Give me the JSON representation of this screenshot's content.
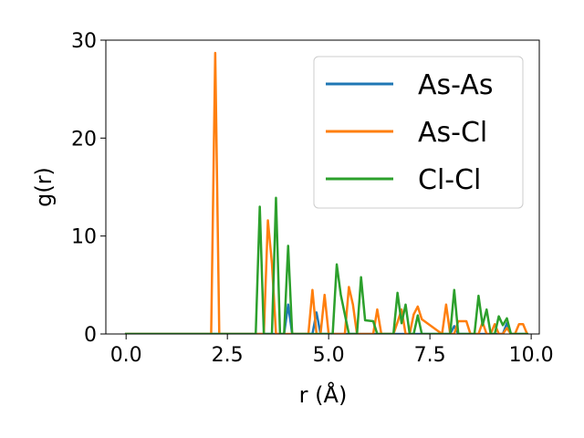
{
  "chart_data": {
    "type": "line",
    "xlabel": "r (Å)",
    "ylabel": "g(r)",
    "xlim": [
      -0.5,
      10.2
    ],
    "ylim": [
      0,
      30
    ],
    "xticks": [
      "0.0",
      "2.5",
      "5.0",
      "7.5",
      "10.0"
    ],
    "yticks": [
      "0",
      "10",
      "20",
      "30"
    ],
    "grid": false,
    "legend_position": "top-right",
    "series": [
      {
        "name": "As-As",
        "color": "#1f77b4",
        "x": [
          0.0,
          3.9,
          4.0,
          4.1,
          4.6,
          4.7,
          4.8,
          8.0,
          8.1,
          8.2,
          9.3,
          9.4,
          9.5,
          9.9
        ],
        "y": [
          0.0,
          0.0,
          3.0,
          0.0,
          0.0,
          2.2,
          0.0,
          0.0,
          0.8,
          0.0,
          0.0,
          1.1,
          0.0,
          0.0
        ]
      },
      {
        "name": "As-Cl",
        "color": "#ff7f0e",
        "x": [
          0.0,
          2.1,
          2.2,
          2.3,
          3.4,
          3.5,
          3.6,
          3.7,
          3.8,
          4.5,
          4.6,
          4.7,
          4.8,
          4.9,
          5.0,
          5.4,
          5.5,
          5.6,
          5.7,
          6.1,
          6.2,
          6.3,
          6.6,
          6.7,
          6.8,
          6.9,
          7.0,
          7.1,
          7.2,
          7.3,
          7.8,
          7.9,
          8.0,
          8.1,
          8.2,
          8.3,
          8.4,
          8.5,
          8.6,
          8.7,
          8.8,
          8.9,
          9.0,
          9.1,
          9.2,
          9.3,
          9.4,
          9.5,
          9.6,
          9.7,
          9.8,
          9.9
        ],
        "y": [
          0.0,
          0.0,
          28.7,
          0.0,
          0.0,
          11.6,
          7.2,
          0.0,
          0.0,
          0.0,
          4.5,
          0.0,
          0.0,
          4.0,
          0.0,
          0.0,
          4.8,
          3.0,
          0.0,
          0.0,
          2.5,
          0.0,
          0.0,
          1.2,
          2.5,
          0.0,
          0.0,
          2.0,
          2.8,
          1.5,
          0.0,
          3.0,
          0.0,
          0.0,
          1.3,
          1.3,
          1.3,
          0.0,
          0.0,
          0.0,
          1.2,
          0.0,
          0.0,
          1.0,
          0.0,
          0.0,
          0.6,
          0.0,
          0.0,
          1.0,
          1.0,
          0.0
        ]
      },
      {
        "name": "Cl-Cl",
        "color": "#2ca02c",
        "x": [
          0.0,
          3.2,
          3.3,
          3.4,
          3.6,
          3.7,
          3.8,
          3.9,
          4.0,
          4.1,
          5.1,
          5.2,
          5.3,
          5.5,
          5.6,
          5.7,
          5.8,
          5.9,
          6.1,
          6.2,
          6.6,
          6.7,
          6.8,
          6.9,
          7.0,
          7.1,
          7.2,
          7.3,
          7.9,
          8.0,
          8.1,
          8.2,
          8.3,
          8.5,
          8.6,
          8.7,
          8.8,
          8.9,
          9.0,
          9.1,
          9.2,
          9.3,
          9.4,
          9.5,
          9.6,
          9.9
        ],
        "y": [
          0.0,
          0.0,
          13.0,
          0.0,
          0.0,
          13.9,
          0.0,
          0.0,
          9.0,
          0.0,
          0.0,
          7.1,
          4.0,
          0.0,
          0.0,
          0.0,
          5.8,
          1.4,
          1.3,
          0.0,
          0.0,
          4.2,
          1.1,
          3.0,
          0.0,
          0.0,
          1.9,
          0.0,
          0.0,
          0.0,
          4.5,
          0.0,
          0.0,
          0.0,
          0.0,
          3.9,
          0.9,
          2.5,
          0.0,
          0.0,
          1.8,
          0.9,
          1.6,
          0.0,
          0.0,
          0.0
        ]
      }
    ]
  }
}
